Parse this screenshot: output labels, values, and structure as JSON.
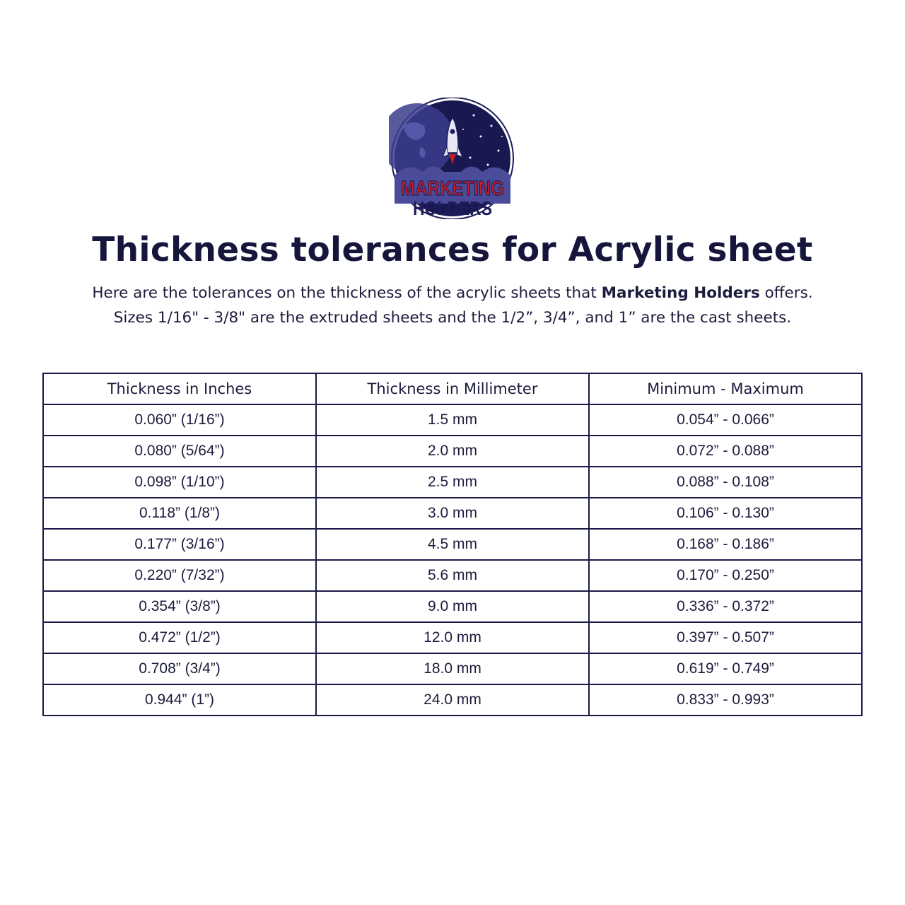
{
  "logo": {
    "line1": "MARKETING",
    "line2": "HOLDERS",
    "colors": {
      "navy": "#1d1d5c",
      "red": "#c0202a"
    }
  },
  "title": "Thickness tolerances for Acrylic sheet",
  "subtitle": {
    "line1_before": "Here are the tolerances on the thickness of the acrylic sheets that ",
    "line1_bold": "Marketing Holders",
    "line1_after": " offers.",
    "line2": "Sizes 1/16\" - 3/8\" are the extruded sheets and the 1/2”, 3/4”, and 1” are the cast sheets."
  },
  "table": {
    "headers": [
      "Thickness in Inches",
      "Thickness in Millimeter",
      "Minimum - Maximum"
    ],
    "rows": [
      [
        "0.060” (1/16”)",
        "1.5 mm",
        "0.054” - 0.066”"
      ],
      [
        "0.080” (5/64”)",
        "2.0 mm",
        "0.072” - 0.088”"
      ],
      [
        "0.098” (1/10”)",
        "2.5 mm",
        "0.088” - 0.108”"
      ],
      [
        "0.118” (1/8”)",
        "3.0 mm",
        "0.106” - 0.130”"
      ],
      [
        "0.177” (3/16”)",
        "4.5 mm",
        "0.168” - 0.186”"
      ],
      [
        "0.220” (7/32”)",
        "5.6 mm",
        "0.170” - 0.250”"
      ],
      [
        "0.354” (3/8”)",
        "9.0 mm",
        "0.336” - 0.372”"
      ],
      [
        "0.472” (1/2”)",
        "12.0 mm",
        "0.397” - 0.507”"
      ],
      [
        "0.708” (3/4”)",
        "18.0 mm",
        "0.619” - 0.749”"
      ],
      [
        "0.944” (1”)",
        "24.0 mm",
        "0.833” - 0.993”"
      ]
    ]
  }
}
